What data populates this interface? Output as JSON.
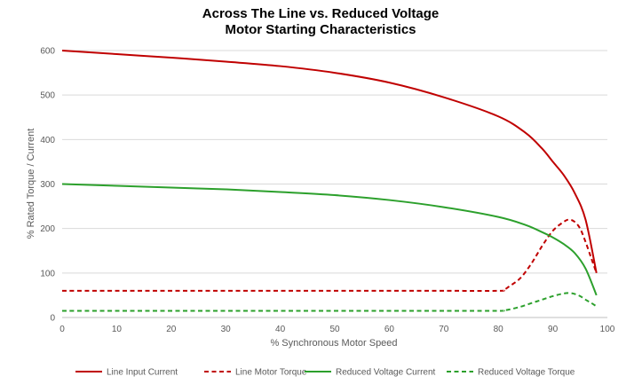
{
  "chart_data": {
    "type": "line",
    "title": [
      "Across The Line vs. Reduced Voltage",
      "Motor Starting Characteristics"
    ],
    "xlabel": "% Synchronous Motor Speed",
    "ylabel": "% Rated Torque / Current",
    "xlim": [
      0,
      100
    ],
    "ylim": [
      0,
      600
    ],
    "x_ticks": [
      0,
      10,
      20,
      30,
      40,
      50,
      60,
      70,
      80,
      90,
      100
    ],
    "y_ticks": [
      0,
      100,
      200,
      300,
      400,
      500,
      600
    ],
    "grid": "horizontal",
    "legend_position": "bottom",
    "series": [
      {
        "name": "Line Input Current",
        "color": "#c00000",
        "dash": "solid",
        "points": [
          [
            0,
            600
          ],
          [
            10,
            592
          ],
          [
            20,
            584
          ],
          [
            30,
            575
          ],
          [
            40,
            565
          ],
          [
            50,
            550
          ],
          [
            60,
            528
          ],
          [
            70,
            495
          ],
          [
            80,
            452
          ],
          [
            85,
            415
          ],
          [
            88,
            380
          ],
          [
            90,
            350
          ],
          [
            92,
            320
          ],
          [
            94,
            280
          ],
          [
            96,
            220
          ],
          [
            98,
            100
          ]
        ]
      },
      {
        "name": "Line Motor Torque",
        "color": "#c00000",
        "dash": "dashed",
        "points": [
          [
            0,
            60
          ],
          [
            10,
            60
          ],
          [
            20,
            60
          ],
          [
            30,
            60
          ],
          [
            40,
            60
          ],
          [
            50,
            60
          ],
          [
            60,
            60
          ],
          [
            70,
            60
          ],
          [
            80,
            60
          ],
          [
            81,
            62
          ],
          [
            82,
            70
          ],
          [
            84,
            88
          ],
          [
            86,
            120
          ],
          [
            88,
            160
          ],
          [
            90,
            195
          ],
          [
            92,
            215
          ],
          [
            93,
            220
          ],
          [
            94,
            215
          ],
          [
            95,
            200
          ],
          [
            96,
            170
          ],
          [
            97,
            135
          ],
          [
            98,
            100
          ]
        ]
      },
      {
        "name": "Reduced Voltage Current",
        "color": "#2ca02c",
        "dash": "solid",
        "points": [
          [
            0,
            300
          ],
          [
            10,
            296
          ],
          [
            20,
            292
          ],
          [
            30,
            288
          ],
          [
            40,
            282
          ],
          [
            50,
            275
          ],
          [
            60,
            264
          ],
          [
            70,
            248
          ],
          [
            80,
            226
          ],
          [
            85,
            208
          ],
          [
            88,
            192
          ],
          [
            90,
            180
          ],
          [
            92,
            165
          ],
          [
            94,
            145
          ],
          [
            96,
            110
          ],
          [
            98,
            50
          ]
        ]
      },
      {
        "name": "Reduced Voltage Torque",
        "color": "#2ca02c",
        "dash": "dashed",
        "points": [
          [
            0,
            15
          ],
          [
            10,
            15
          ],
          [
            20,
            15
          ],
          [
            30,
            15
          ],
          [
            40,
            15
          ],
          [
            50,
            15
          ],
          [
            60,
            15
          ],
          [
            70,
            15
          ],
          [
            80,
            15
          ],
          [
            81,
            16
          ],
          [
            82,
            18
          ],
          [
            84,
            24
          ],
          [
            86,
            32
          ],
          [
            88,
            40
          ],
          [
            90,
            48
          ],
          [
            92,
            54
          ],
          [
            93,
            55
          ],
          [
            94,
            53
          ],
          [
            95,
            48
          ],
          [
            96,
            40
          ],
          [
            97,
            33
          ],
          [
            98,
            25
          ]
        ]
      }
    ]
  }
}
